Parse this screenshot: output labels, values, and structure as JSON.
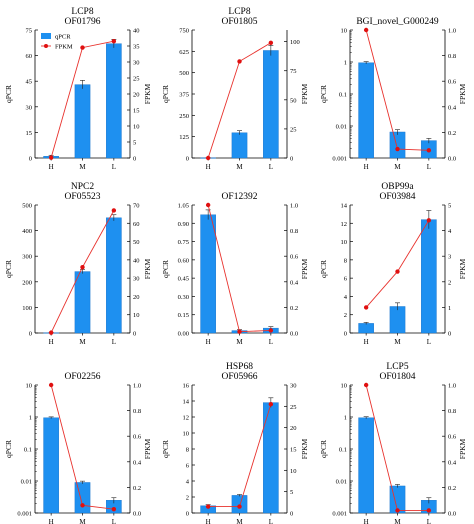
{
  "colors": {
    "bar": "#1e90f0",
    "bar_edge": "#1670c8",
    "line": "#e8322d",
    "marker": "#e01010",
    "axis": "#000000"
  },
  "chart_data": [
    {
      "type": "bar",
      "title": [
        "LCP8",
        "OF01796"
      ],
      "categories": [
        "H",
        "M",
        "L"
      ],
      "ylabel": "qPCR",
      "y2label": "FPKM",
      "yscale": "linear",
      "ylim": [
        0,
        75
      ],
      "yticks": [
        0,
        15,
        30,
        45,
        60,
        75
      ],
      "y2lim": [
        0,
        40
      ],
      "y2ticks": [
        0,
        5,
        10,
        15,
        20,
        25,
        30,
        35,
        40
      ],
      "series": [
        {
          "name": "qPCR",
          "kind": "bar",
          "values": [
            1,
            43,
            67
          ],
          "errors": [
            0.6,
            2.5,
            2.5
          ]
        },
        {
          "name": "FPKM",
          "kind": "line",
          "axis": "right",
          "values": [
            0.1,
            34.5,
            36.5
          ]
        }
      ],
      "legend": {
        "position": "top-left",
        "entries": [
          "qPCR",
          "FPKM"
        ]
      }
    },
    {
      "type": "bar",
      "title": [
        "LCP8",
        "OF01805"
      ],
      "categories": [
        "H",
        "M",
        "L"
      ],
      "ylabel": "qPCR",
      "y2label": "FPKM",
      "yscale": "linear",
      "ylim": [
        0,
        750
      ],
      "yticks": [
        0,
        125,
        250,
        375,
        500,
        625,
        750
      ],
      "y2lim": [
        0,
        110
      ],
      "y2ticks": [
        0,
        25,
        50,
        75,
        100
      ],
      "series": [
        {
          "name": "qPCR",
          "kind": "bar",
          "values": [
            1,
            148,
            630
          ],
          "errors": [
            0.5,
            12,
            30
          ]
        },
        {
          "name": "FPKM",
          "kind": "line",
          "axis": "right",
          "values": [
            0,
            83,
            99
          ]
        }
      ]
    },
    {
      "type": "bar",
      "title": [
        "BGI_novel_G000249"
      ],
      "categories": [
        "H",
        "M",
        "L"
      ],
      "ylabel": "qPCR",
      "y2label": "FPKM",
      "yscale": "log",
      "ylim": [
        0.001,
        10
      ],
      "yticks": [
        0.001,
        0.01,
        0.1,
        1,
        10
      ],
      "yticklabels": [
        "0.001",
        "0.01",
        "0.1",
        "1",
        "10"
      ],
      "y2lim": [
        0,
        1.0
      ],
      "y2ticks": [
        0,
        0.2,
        0.4,
        0.6,
        0.8,
        1.0
      ],
      "series": [
        {
          "name": "qPCR",
          "kind": "bar",
          "values": [
            0.95,
            0.0065,
            0.0035
          ],
          "errors": [
            0.08,
            0.0012,
            0.0006
          ]
        },
        {
          "name": "FPKM",
          "kind": "line",
          "axis": "right",
          "values": [
            1.0,
            0.07,
            0.06
          ]
        }
      ]
    },
    {
      "type": "bar",
      "title": [
        "NPC2",
        "OF05523"
      ],
      "categories": [
        "H",
        "M",
        "L"
      ],
      "ylabel": "qPCR",
      "y2label": "FPKM",
      "yscale": "linear",
      "ylim": [
        0,
        500
      ],
      "yticks": [
        0,
        100,
        200,
        300,
        400,
        500
      ],
      "y2lim": [
        0,
        70
      ],
      "y2ticks": [
        0,
        10,
        20,
        30,
        40,
        50,
        60,
        70
      ],
      "series": [
        {
          "name": "qPCR",
          "kind": "bar",
          "values": [
            1,
            240,
            450
          ],
          "errors": [
            0.5,
            8,
            12
          ]
        },
        {
          "name": "FPKM",
          "kind": "line",
          "axis": "right",
          "values": [
            0.2,
            36,
            67
          ]
        }
      ]
    },
    {
      "type": "bar",
      "title": [
        "OF12392"
      ],
      "categories": [
        "H",
        "M",
        "L"
      ],
      "ylabel": "qPCR",
      "y2label": "FPKM",
      "yscale": "linear",
      "ylim": [
        0,
        1.05
      ],
      "yticks": [
        0,
        0.15,
        0.3,
        0.45,
        0.6,
        0.75,
        0.9,
        1.05
      ],
      "yticklabels": [
        "0.00",
        "0.15",
        "0.30",
        "0.45",
        "0.60",
        "0.75",
        "0.90",
        "1.05"
      ],
      "y2lim": [
        0,
        1.0
      ],
      "y2ticks": [
        0,
        0.2,
        0.4,
        0.6,
        0.8,
        1.0
      ],
      "series": [
        {
          "name": "qPCR",
          "kind": "bar",
          "values": [
            0.97,
            0.02,
            0.04
          ],
          "errors": [
            0.04,
            0.008,
            0.012
          ]
        },
        {
          "name": "FPKM",
          "kind": "line",
          "axis": "right",
          "values": [
            1.0,
            0.01,
            0.02
          ]
        }
      ]
    },
    {
      "type": "bar",
      "title": [
        "OBP99a",
        "OF03984"
      ],
      "categories": [
        "H",
        "M",
        "L"
      ],
      "ylabel": "qPCR",
      "y2label": "FPKM",
      "yscale": "linear",
      "ylim": [
        0,
        14
      ],
      "yticks": [
        0,
        2,
        4,
        6,
        8,
        10,
        12,
        14
      ],
      "y2lim": [
        0,
        5
      ],
      "y2ticks": [
        0,
        1,
        2,
        3,
        4,
        5
      ],
      "series": [
        {
          "name": "qPCR",
          "kind": "bar",
          "values": [
            1.05,
            2.9,
            12.4
          ],
          "errors": [
            0.12,
            0.4,
            1.0
          ]
        },
        {
          "name": "FPKM",
          "kind": "line",
          "axis": "right",
          "values": [
            1.0,
            2.4,
            4.4
          ]
        }
      ]
    },
    {
      "type": "bar",
      "title": [
        "OF02256"
      ],
      "categories": [
        "H",
        "M",
        "L"
      ],
      "ylabel": "qPCR",
      "y2label": "FPKM",
      "yscale": "log",
      "ylim": [
        0.001,
        10
      ],
      "yticks": [
        0.001,
        0.01,
        0.1,
        1,
        10
      ],
      "yticklabels": [
        "0.001",
        "0.01",
        "0.1",
        "1",
        "10"
      ],
      "y2lim": [
        0,
        1.0
      ],
      "y2ticks": [
        0,
        0.2,
        0.4,
        0.6,
        0.8,
        1.0
      ],
      "series": [
        {
          "name": "qPCR",
          "kind": "bar",
          "values": [
            0.95,
            0.009,
            0.0025
          ],
          "errors": [
            0.06,
            0.0009,
            0.0005
          ]
        },
        {
          "name": "FPKM",
          "kind": "line",
          "axis": "right",
          "values": [
            1.0,
            0.06,
            0.03
          ]
        }
      ]
    },
    {
      "type": "bar",
      "title": [
        "HSP68",
        "OF05966"
      ],
      "categories": [
        "H",
        "M",
        "L"
      ],
      "ylabel": "qPCR",
      "y2label": "FPKM",
      "yscale": "linear",
      "ylim": [
        0,
        16
      ],
      "yticks": [
        0,
        2,
        4,
        6,
        8,
        10,
        12,
        14,
        16
      ],
      "y2lim": [
        0,
        30
      ],
      "y2ticks": [
        0,
        5,
        10,
        15,
        20,
        25,
        30
      ],
      "series": [
        {
          "name": "qPCR",
          "kind": "bar",
          "values": [
            0.9,
            2.2,
            13.8
          ],
          "errors": [
            0.15,
            0.12,
            0.6
          ]
        },
        {
          "name": "FPKM",
          "kind": "line",
          "axis": "right",
          "values": [
            1.5,
            1.5,
            25.5
          ]
        }
      ]
    },
    {
      "type": "bar",
      "title": [
        "LCP5",
        "OF01804"
      ],
      "categories": [
        "H",
        "M",
        "L"
      ],
      "ylabel": "qPCR",
      "y2label": "FPKM",
      "yscale": "log",
      "ylim": [
        0.001,
        10
      ],
      "yticks": [
        0.001,
        0.01,
        0.1,
        1,
        10
      ],
      "yticklabels": [
        "0.001",
        "0.01",
        "0.1",
        "1",
        "10"
      ],
      "y2lim": [
        0,
        1.0
      ],
      "y2ticks": [
        0,
        0.2,
        0.4,
        0.6,
        0.8,
        1.0
      ],
      "series": [
        {
          "name": "qPCR",
          "kind": "bar",
          "values": [
            0.95,
            0.007,
            0.0025
          ],
          "errors": [
            0.07,
            0.0008,
            0.0005
          ]
        },
        {
          "name": "FPKM",
          "kind": "line",
          "axis": "right",
          "values": [
            1.0,
            0.02,
            0.02
          ]
        }
      ]
    }
  ]
}
